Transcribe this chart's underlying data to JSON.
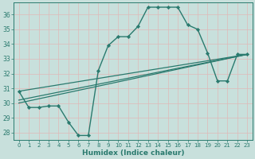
{
  "background_color": "#c8e0dc",
  "grid_color": "#e8f4f0",
  "line_color": "#2a7a6e",
  "marker_color": "#2a7a6e",
  "xlabel": "Humidex (Indice chaleur)",
  "xlim": [
    -0.5,
    23.5
  ],
  "ylim": [
    27.5,
    36.8
  ],
  "xticks": [
    0,
    1,
    2,
    3,
    4,
    5,
    6,
    7,
    8,
    9,
    10,
    11,
    12,
    13,
    14,
    15,
    16,
    17,
    18,
    19,
    20,
    21,
    22,
    23
  ],
  "yticks": [
    28,
    29,
    30,
    31,
    32,
    33,
    34,
    35,
    36
  ],
  "curve": {
    "x": [
      0,
      1,
      2,
      3,
      4,
      5,
      6,
      7,
      8,
      9,
      10,
      11,
      12,
      13,
      14,
      15,
      16,
      17,
      18,
      19,
      20,
      21,
      22,
      23
    ],
    "y": [
      30.8,
      29.7,
      29.7,
      29.8,
      29.8,
      28.7,
      27.8,
      27.8,
      32.2,
      33.9,
      34.5,
      34.5,
      35.2,
      36.5,
      36.5,
      36.5,
      36.5,
      35.3,
      35.0,
      33.4,
      31.5,
      31.5,
      33.3,
      33.3
    ]
  },
  "straight_lines": [
    {
      "x0": 0,
      "y0": 30.0,
      "x1": 23,
      "y1": 33.3
    },
    {
      "x0": 0,
      "y0": 30.2,
      "x1": 23,
      "y1": 33.3
    },
    {
      "x0": 0,
      "y0": 30.8,
      "x1": 23,
      "y1": 33.3
    }
  ]
}
